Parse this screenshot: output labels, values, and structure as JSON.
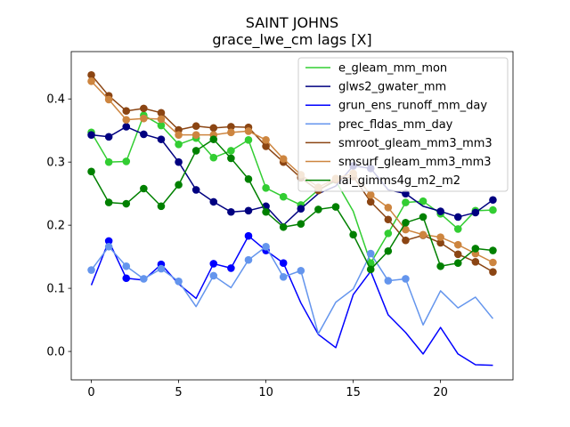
{
  "chart_data": {
    "type": "line",
    "title": "SAINT JOHNS",
    "subtitle": "grace_lwe_cm lags [X]",
    "xlabel": "",
    "ylabel": "",
    "xlim": [
      -1.15,
      24.15
    ],
    "ylim": [
      -0.045,
      0.475
    ],
    "x_ticks": [
      0,
      5,
      10,
      15,
      20
    ],
    "y_ticks": [
      0.0,
      0.1,
      0.2,
      0.3,
      0.4
    ],
    "y_tick_labels": [
      "0.0",
      "0.1",
      "0.2",
      "0.3",
      "0.4"
    ],
    "grid": false,
    "legend_position": "top-right",
    "x": [
      0,
      1,
      2,
      3,
      4,
      5,
      6,
      7,
      8,
      9,
      10,
      11,
      12,
      13,
      14,
      15,
      16,
      17,
      18,
      19,
      20,
      21,
      22,
      23
    ],
    "series": [
      {
        "name": "e_gleam_mm_mon",
        "color": "#32cd32",
        "values": [
          0.347,
          0.3,
          0.301,
          0.374,
          0.358,
          0.328,
          0.338,
          0.307,
          0.318,
          0.335,
          0.259,
          0.245,
          0.232,
          0.256,
          0.27,
          0.222,
          0.14,
          0.187,
          0.236,
          0.238,
          0.218,
          0.194,
          0.223,
          0.224
        ],
        "markers": [
          true,
          true,
          true,
          true,
          true,
          true,
          true,
          true,
          true,
          true,
          true,
          true,
          true,
          false,
          false,
          false,
          true,
          true,
          true,
          true,
          true,
          true,
          true,
          true
        ]
      },
      {
        "name": "glws2_gwater_mm",
        "color": "#000080",
        "values": [
          0.343,
          0.34,
          0.356,
          0.344,
          0.336,
          0.3,
          0.256,
          0.237,
          0.221,
          0.223,
          0.23,
          0.2,
          0.226,
          0.25,
          0.262,
          0.294,
          0.29,
          0.256,
          0.25,
          0.23,
          0.222,
          0.213,
          0.22,
          0.24
        ],
        "markers": [
          true,
          true,
          true,
          true,
          true,
          true,
          true,
          true,
          true,
          true,
          true,
          false,
          true,
          false,
          false,
          true,
          true,
          false,
          true,
          false,
          true,
          true,
          true,
          true
        ]
      },
      {
        "name": "grun_ens_runoff_mm_day",
        "color": "#0000ff",
        "values": [
          0.105,
          0.175,
          0.116,
          0.113,
          0.138,
          0.107,
          0.084,
          0.139,
          0.132,
          0.183,
          0.16,
          0.14,
          0.077,
          0.027,
          0.006,
          0.09,
          0.127,
          0.058,
          0.03,
          -0.004,
          0.038,
          -0.004,
          -0.021,
          -0.022
        ],
        "markers": [
          false,
          true,
          true,
          false,
          true,
          false,
          false,
          true,
          true,
          true,
          true,
          true,
          false,
          false,
          false,
          false,
          false,
          false,
          false,
          false,
          false,
          false,
          false,
          false
        ]
      },
      {
        "name": "prec_fldas_mm_day",
        "color": "#6495ed",
        "values": [
          0.129,
          0.166,
          0.135,
          0.115,
          0.131,
          0.111,
          0.071,
          0.12,
          0.101,
          0.145,
          0.166,
          0.118,
          0.128,
          0.028,
          0.078,
          0.099,
          0.155,
          0.112,
          0.115,
          0.042,
          0.096,
          0.069,
          0.086,
          0.052
        ],
        "markers": [
          true,
          true,
          true,
          true,
          true,
          true,
          false,
          true,
          false,
          true,
          true,
          true,
          true,
          false,
          false,
          false,
          true,
          true,
          true,
          false,
          false,
          false,
          false,
          false
        ]
      },
      {
        "name": "smroot_gleam_mm3_mm3",
        "color": "#8b4513",
        "values": [
          0.438,
          0.405,
          0.381,
          0.385,
          0.378,
          0.351,
          0.357,
          0.354,
          0.356,
          0.355,
          0.325,
          0.3,
          0.275,
          0.255,
          0.272,
          0.277,
          0.237,
          0.209,
          0.176,
          0.184,
          0.172,
          0.154,
          0.142,
          0.126
        ],
        "markers": [
          true,
          true,
          true,
          true,
          true,
          true,
          true,
          true,
          true,
          true,
          true,
          true,
          true,
          true,
          true,
          true,
          true,
          true,
          true,
          true,
          true,
          true,
          true,
          true
        ]
      },
      {
        "name": "smsurf_gleam_mm3_mm3",
        "color": "#cd853f",
        "values": [
          0.428,
          0.399,
          0.367,
          0.369,
          0.368,
          0.343,
          0.343,
          0.343,
          0.347,
          0.349,
          0.335,
          0.305,
          0.28,
          0.26,
          0.274,
          0.282,
          0.248,
          0.228,
          0.193,
          0.185,
          0.181,
          0.169,
          0.155,
          0.141
        ],
        "markers": [
          true,
          true,
          true,
          true,
          true,
          true,
          true,
          true,
          true,
          true,
          true,
          true,
          true,
          true,
          true,
          true,
          true,
          true,
          true,
          true,
          true,
          true,
          true,
          true
        ]
      },
      {
        "name": "lai_gimms4g_m2_m2",
        "color": "#008000",
        "values": [
          0.285,
          0.236,
          0.234,
          0.258,
          0.23,
          0.264,
          0.318,
          0.336,
          0.306,
          0.273,
          0.221,
          0.197,
          0.202,
          0.225,
          0.229,
          0.185,
          0.13,
          0.159,
          0.204,
          0.213,
          0.135,
          0.14,
          0.163,
          0.16
        ],
        "markers": [
          true,
          true,
          true,
          true,
          true,
          true,
          true,
          true,
          true,
          true,
          true,
          true,
          true,
          true,
          true,
          true,
          true,
          true,
          true,
          true,
          true,
          true,
          true,
          true
        ]
      }
    ]
  }
}
